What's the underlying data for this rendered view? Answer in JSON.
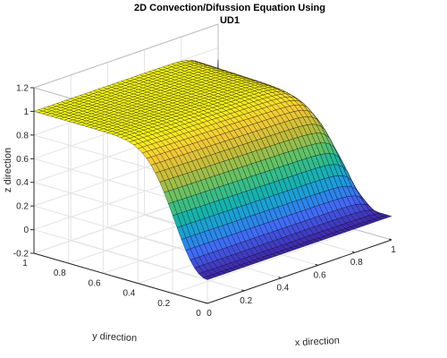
{
  "chart_data": {
    "type": "surface",
    "title_line1": "2D Convection/Difussion Equation Using",
    "title_line2": "UD1",
    "xlabel": "x direction",
    "ylabel": "y direction",
    "zlabel": "z direction",
    "xlim": [
      0,
      1
    ],
    "ylim": [
      0,
      1
    ],
    "zlim": [
      -0.2,
      1.2
    ],
    "xticks": [
      "0",
      "0.2",
      "0.4",
      "0.6",
      "0.8",
      "1"
    ],
    "yticks": [
      "0",
      "0.2",
      "0.4",
      "0.6",
      "0.8",
      "1"
    ],
    "zticks": [
      "-0.2",
      "0",
      "0.2",
      "0.4",
      "0.6",
      "0.8",
      "1",
      "1.2"
    ],
    "grid": true,
    "colormap": "parula",
    "colormap_stops": [
      "#3e26a8",
      "#4366f8",
      "#1d9ae0",
      "#16b7a3",
      "#62c265",
      "#c0bb3b",
      "#f5c936",
      "#f9fb15"
    ],
    "grid_points": 41,
    "surface_description": "z ≈ 1 over the upper plateau, falling steeply to 0 near x = 1 and toward y = 0 (convective boundary layers)"
  }
}
